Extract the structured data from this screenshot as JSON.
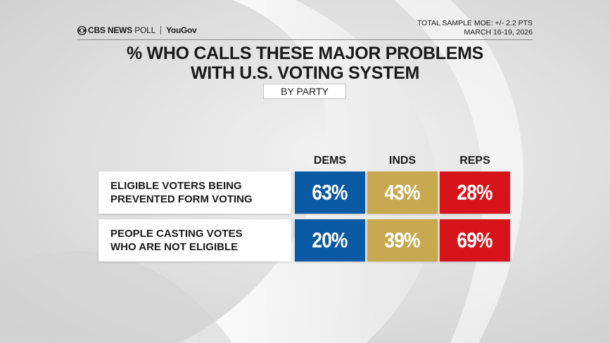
{
  "header": {
    "brand_network": "CBS NEWS",
    "brand_poll": " POLL",
    "brand_partner": "YouGov",
    "moe": "TOTAL SAMPLE MOE: +/- 2.2 PTS",
    "dates": "MARCH 16-19, 2026"
  },
  "icons": {
    "brand_logo": "cbs-eye-icon"
  },
  "colors": {
    "dems": "#0b5aa5",
    "inds": "#c8a94f",
    "reps": "#d8141b",
    "text": "#1a1a1a",
    "background": "#dcdcdc"
  },
  "chart_data": {
    "type": "table",
    "title": "% WHO CALLS THESE MAJOR PROBLEMS WITH U.S. VOTING SYSTEM",
    "subtitle": "BY PARTY",
    "columns": [
      "DEMS",
      "INDS",
      "REPS"
    ],
    "rows": [
      {
        "label": "ELIGIBLE VOTERS BEING\nPREVENTED FORM VOTING",
        "values": [
          "63%",
          "43%",
          "28%"
        ]
      },
      {
        "label": "PEOPLE CASTING VOTES\nWHO ARE NOT ELIGIBLE",
        "values": [
          "20%",
          "39%",
          "69%"
        ]
      }
    ]
  }
}
